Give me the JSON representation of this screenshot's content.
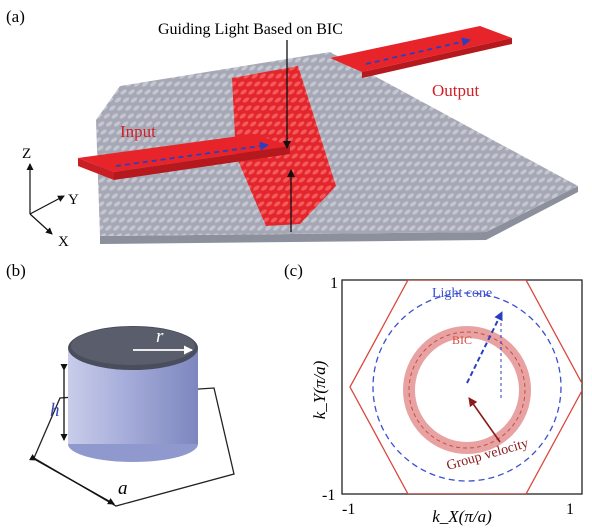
{
  "panel_a": {
    "label": "(a)",
    "title": "Guiding Light Based on BIC",
    "input_label": "Input",
    "output_label": "Output",
    "axis_z": "Z",
    "axis_y": "Y",
    "axis_x": "X"
  },
  "panel_b": {
    "label": "(b)",
    "radius_label": "r",
    "height_label": "h",
    "lattice_label": "a"
  },
  "panel_c": {
    "label": "(c)",
    "light_cone_label": "Light cone",
    "bic_label": "BIC",
    "group_velocity_label": "Group velocity",
    "y_axis_label": "k_Y(π/a)",
    "x_axis_label": "k_X(π/a)",
    "y_tick_top": "1",
    "y_tick_bottom": "-1",
    "x_tick_left": "-1",
    "x_tick_right": "1"
  },
  "colors": {
    "waveguide_red": "#e8242b",
    "slab_gray": "#a9acb8",
    "arrow_blue": "#2a3fbf",
    "bic_ring": "#e9a2a2",
    "cylinder_blue": "#9ea7d6",
    "hexagon_red": "#d9463c"
  }
}
